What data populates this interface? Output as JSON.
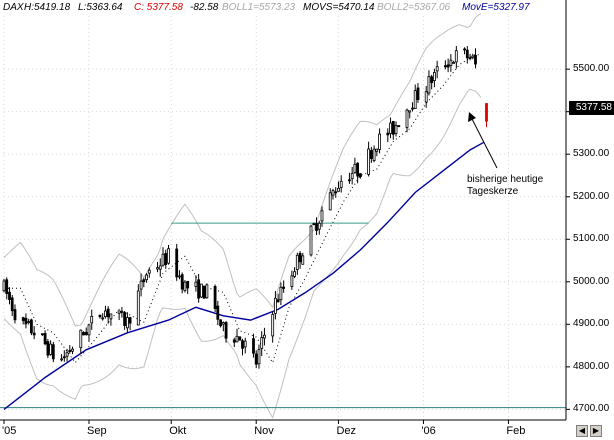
{
  "header": {
    "symbol": "DAX",
    "high": "H:5419.18",
    "low": "L:5363.64",
    "close": "C: 5377.58",
    "change": "-82.58",
    "boll1": "BOLL1=5573.23",
    "movs": "MOVS=5470.14",
    "boll2": "BOLL2=5367.06",
    "move": "MovE=5327.97"
  },
  "colors": {
    "up_candle": "#ffffff",
    "down_candle": "#000000",
    "today_candle": "#e00000",
    "bollinger": "#c0c0c0",
    "short_ma": "#000000",
    "long_ma": "#00009c",
    "resistance": "#3a9a8a",
    "support": "#2f7f7f",
    "grid": "#d8d8d8"
  },
  "last_price_label": "5377.58",
  "annotation": {
    "line1": "bisherige heutige",
    "line2": "Tageskerze"
  },
  "scroll_buttons": {
    "left_icon": "arrow-left-icon",
    "right_icon": "arrow-right-icon",
    "left_glyph": "◀",
    "right_glyph": "▶"
  },
  "chart_data": {
    "type": "candlestick",
    "title": "",
    "xlabel": "",
    "ylabel": "",
    "ylim": [
      4675,
      5625
    ],
    "y_ticks": [
      "5500.00",
      "5400.00",
      "5300.00",
      "5200.00",
      "5100.00",
      "5000.00",
      "4900.00",
      "4800.00",
      "4700.00"
    ],
    "y_tick_values": [
      5500,
      5400,
      5300,
      5200,
      5100,
      5000,
      4900,
      4800,
      4700
    ],
    "x_ticks": [
      {
        "label": "'05",
        "day": 0
      },
      {
        "label": "Sep",
        "day": 31
      },
      {
        "label": "Okt",
        "day": 61
      },
      {
        "label": "Nov",
        "day": 92
      },
      {
        "label": "Dez",
        "day": 122
      },
      {
        "label": "'06",
        "day": 153
      },
      {
        "label": "Feb",
        "day": 184
      }
    ],
    "x_domain_days": [
      0,
      205
    ],
    "grid": true,
    "anchor_points": [
      [
        0,
        4985
      ],
      [
        6,
        4900
      ],
      [
        12,
        4880
      ],
      [
        20,
        4810
      ],
      [
        26,
        4855
      ],
      [
        36,
        4935
      ],
      [
        45,
        4905
      ],
      [
        52,
        5020
      ],
      [
        60,
        5060
      ],
      [
        66,
        4990
      ],
      [
        74,
        4975
      ],
      [
        80,
        4885
      ],
      [
        86,
        4870
      ],
      [
        92,
        4810
      ],
      [
        98,
        4940
      ],
      [
        104,
        5010
      ],
      [
        112,
        5115
      ],
      [
        118,
        5190
      ],
      [
        124,
        5250
      ],
      [
        130,
        5265
      ],
      [
        136,
        5330
      ],
      [
        142,
        5360
      ],
      [
        148,
        5420
      ],
      [
        154,
        5460
      ],
      [
        160,
        5510
      ],
      [
        166,
        5535
      ],
      [
        170,
        5530
      ],
      [
        173,
        5500
      ],
      [
        174,
        5460
      ]
    ],
    "today_candle": {
      "day": 176,
      "open": 5419.18,
      "high": 5419.18,
      "low": 5363.64,
      "close": 5377.58
    },
    "resistance_line": {
      "from_day": 61,
      "to_day": 133,
      "value": 5138
    },
    "support_line": {
      "from_day": 0,
      "to_day": 210,
      "value": 4704
    },
    "bollinger_width": 130,
    "ma_long_points": [
      [
        0,
        4700
      ],
      [
        15,
        4775
      ],
      [
        30,
        4840
      ],
      [
        45,
        4880
      ],
      [
        60,
        4910
      ],
      [
        70,
        4940
      ],
      [
        80,
        4920
      ],
      [
        90,
        4910
      ],
      [
        100,
        4935
      ],
      [
        110,
        4975
      ],
      [
        120,
        5020
      ],
      [
        130,
        5075
      ],
      [
        140,
        5140
      ],
      [
        150,
        5210
      ],
      [
        160,
        5260
      ],
      [
        170,
        5310
      ],
      [
        175,
        5328
      ]
    ],
    "series": [
      {
        "name": "BOLL1",
        "values": [
          5573.23
        ]
      },
      {
        "name": "MOVS",
        "values": [
          5470.14
        ]
      },
      {
        "name": "BOLL2",
        "values": [
          5367.06
        ]
      },
      {
        "name": "MovE",
        "values": [
          5327.97
        ]
      }
    ]
  }
}
